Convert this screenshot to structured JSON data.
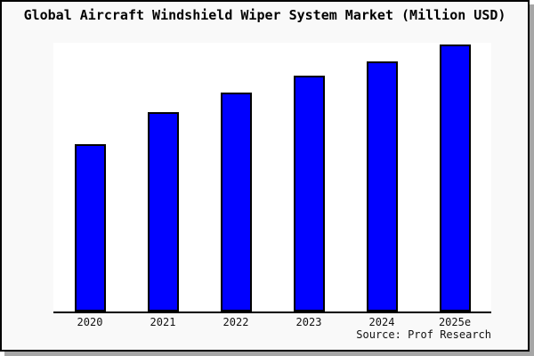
{
  "window": {
    "background_color": "#f9f9f9",
    "plot_background_color": "#ffffff",
    "frame_border_color": "#000000",
    "shadow_color": "#a6a6a6"
  },
  "chart_data": {
    "type": "bar",
    "title": "Global Aircraft Windshield Wiper System Market (Million USD)",
    "categories": [
      "2020",
      "2021",
      "2022",
      "2023",
      "2024",
      "2025e"
    ],
    "values_relative_pct_of_max": [
      62.7,
      74.7,
      82.0,
      88.3,
      93.7,
      100
    ],
    "xlabel": "",
    "ylabel": "",
    "y_axis_tick_labels_visible": false,
    "grid": false,
    "legend_position": "none",
    "bar_color": "#0000ff",
    "bar_border_color": "#000000",
    "axis_line_color": "#000000",
    "source": "Source: Prof Research"
  }
}
